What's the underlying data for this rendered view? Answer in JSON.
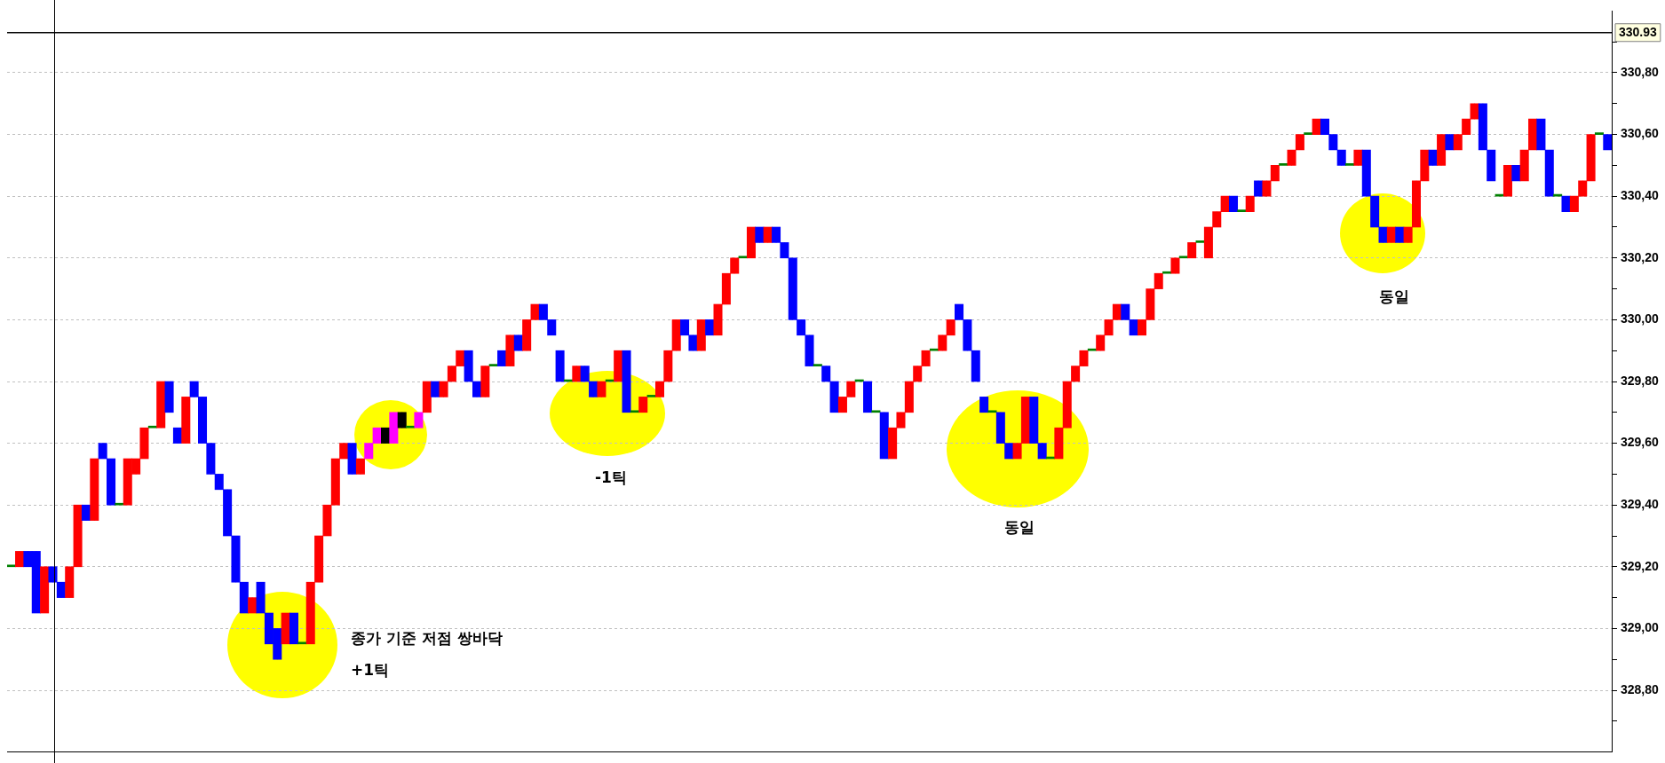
{
  "chart_data": {
    "type": "candlestick",
    "categories": [
      null,
      null,
      null,
      null,
      null,
      null,
      null,
      null,
      null,
      null,
      null,
      null,
      null,
      null,
      null,
      null,
      null,
      null,
      null,
      null,
      null,
      null,
      null,
      null,
      null,
      null,
      null,
      null,
      null,
      null,
      null,
      null,
      null,
      null,
      null,
      null,
      null,
      null,
      null,
      null,
      null,
      null,
      null,
      null,
      null,
      null,
      null,
      null,
      null,
      null,
      null,
      null,
      null,
      null,
      null,
      null,
      null,
      null,
      null,
      null,
      null,
      null,
      null,
      null,
      null,
      null,
      null,
      null,
      null,
      null,
      null,
      null,
      null,
      null,
      null,
      null,
      null,
      null,
      null,
      null,
      null,
      null,
      null,
      null,
      null,
      null,
      null,
      null,
      null,
      null,
      null,
      null,
      null,
      null,
      null,
      null,
      null,
      null,
      null,
      null,
      null,
      null,
      null,
      null,
      null,
      null,
      null,
      null,
      null,
      null,
      null,
      null,
      null,
      null,
      null,
      null,
      null,
      null,
      null,
      null,
      null,
      null,
      null,
      null,
      null,
      null,
      null,
      null,
      null,
      null,
      null,
      null,
      null,
      null,
      null,
      null,
      null,
      null,
      null,
      null,
      null,
      null,
      null,
      null,
      null,
      null,
      null,
      null,
      null,
      null,
      null,
      null,
      null,
      null,
      null,
      null,
      null,
      null,
      null,
      null,
      null,
      null,
      null,
      null,
      null,
      null,
      null,
      null,
      null,
      null,
      null,
      null,
      null,
      null,
      null,
      null,
      null,
      null,
      null,
      null,
      null,
      null,
      null,
      null,
      null,
      null,
      null,
      null,
      null,
      null,
      null,
      null,
      null
    ],
    "ohlc": [
      [
        329.2,
        329.2,
        329.2,
        329.2
      ],
      [
        329.2,
        329.25,
        329.2,
        329.25
      ],
      [
        329.25,
        329.25,
        329.2,
        329.2
      ],
      [
        329.25,
        329.25,
        329.05,
        329.05
      ],
      [
        329.05,
        329.2,
        329.05,
        329.2
      ],
      [
        329.2,
        329.2,
        329.15,
        329.15
      ],
      [
        329.15,
        329.15,
        329.1,
        329.1
      ],
      [
        329.1,
        329.2,
        329.1,
        329.2
      ],
      [
        329.2,
        329.4,
        329.2,
        329.4
      ],
      [
        329.4,
        329.4,
        329.35,
        329.35
      ],
      [
        329.35,
        329.55,
        329.35,
        329.55
      ],
      [
        329.6,
        329.6,
        329.55,
        329.55
      ],
      [
        329.55,
        329.55,
        329.4,
        329.4
      ],
      [
        329.4,
        329.4,
        329.4,
        329.4
      ],
      [
        329.4,
        329.55,
        329.4,
        329.55
      ],
      [
        329.5,
        329.55,
        329.5,
        329.55
      ],
      [
        329.55,
        329.65,
        329.55,
        329.65
      ],
      [
        329.65,
        329.65,
        329.65,
        329.65
      ],
      [
        329.65,
        329.8,
        329.65,
        329.8
      ],
      [
        329.8,
        329.8,
        329.7,
        329.7
      ],
      [
        329.65,
        329.65,
        329.6,
        329.6
      ],
      [
        329.6,
        329.75,
        329.6,
        329.75
      ],
      [
        329.8,
        329.8,
        329.75,
        329.75
      ],
      [
        329.75,
        329.75,
        329.6,
        329.6
      ],
      [
        329.6,
        329.6,
        329.5,
        329.5
      ],
      [
        329.5,
        329.5,
        329.45,
        329.45
      ],
      [
        329.45,
        329.45,
        329.3,
        329.3
      ],
      [
        329.3,
        329.3,
        329.15,
        329.15
      ],
      [
        329.15,
        329.15,
        329.05,
        329.05
      ],
      [
        329.05,
        329.1,
        329.05,
        329.1
      ],
      [
        329.15,
        329.15,
        329.05,
        329.05
      ],
      [
        329.05,
        329.05,
        328.95,
        328.95
      ],
      [
        329,
        329,
        328.9,
        328.9
      ],
      [
        328.95,
        329.05,
        328.95,
        329.05
      ],
      [
        329.05,
        329.05,
        328.95,
        328.95
      ],
      [
        328.95,
        328.95,
        328.95,
        328.95
      ],
      [
        328.95,
        329.15,
        328.95,
        329.15
      ],
      [
        329.15,
        329.3,
        329.15,
        329.3
      ],
      [
        329.3,
        329.4,
        329.3,
        329.4
      ],
      [
        329.4,
        329.55,
        329.4,
        329.55
      ],
      [
        329.55,
        329.6,
        329.55,
        329.6
      ],
      [
        329.6,
        329.6,
        329.5,
        329.5
      ],
      [
        329.5,
        329.55,
        329.5,
        329.55
      ],
      [
        329.55,
        329.6,
        329.55,
        329.6
      ],
      [
        329.6,
        329.65,
        329.6,
        329.65
      ],
      [
        329.65,
        329.65,
        329.6,
        329.6
      ],
      [
        329.6,
        329.7,
        329.6,
        329.7
      ],
      [
        329.7,
        329.7,
        329.65,
        329.65
      ],
      [
        329.65,
        329.65,
        329.65,
        329.65
      ],
      [
        329.65,
        329.7,
        329.65,
        329.7
      ],
      [
        329.7,
        329.8,
        329.7,
        329.8
      ],
      [
        329.8,
        329.8,
        329.75,
        329.75
      ],
      [
        329.75,
        329.8,
        329.75,
        329.8
      ],
      [
        329.8,
        329.85,
        329.8,
        329.85
      ],
      [
        329.85,
        329.9,
        329.85,
        329.9
      ],
      [
        329.9,
        329.9,
        329.8,
        329.8
      ],
      [
        329.8,
        329.8,
        329.75,
        329.75
      ],
      [
        329.75,
        329.85,
        329.75,
        329.85
      ],
      [
        329.85,
        329.85,
        329.85,
        329.85
      ],
      [
        329.9,
        329.9,
        329.85,
        329.85
      ],
      [
        329.85,
        329.95,
        329.85,
        329.95
      ],
      [
        329.95,
        329.95,
        329.9,
        329.9
      ],
      [
        329.9,
        330,
        329.9,
        330
      ],
      [
        330,
        330.05,
        330,
        330.05
      ],
      [
        330.05,
        330.05,
        330,
        330
      ],
      [
        330,
        330,
        329.95,
        329.95
      ],
      [
        329.9,
        329.9,
        329.8,
        329.8
      ],
      [
        329.8,
        329.8,
        329.8,
        329.8
      ],
      [
        329.8,
        329.85,
        329.8,
        329.85
      ],
      [
        329.85,
        329.85,
        329.8,
        329.8
      ],
      [
        329.8,
        329.8,
        329.75,
        329.75
      ],
      [
        329.75,
        329.8,
        329.75,
        329.8
      ],
      [
        329.8,
        329.8,
        329.8,
        329.8
      ],
      [
        329.8,
        329.9,
        329.8,
        329.9
      ],
      [
        329.9,
        329.9,
        329.7,
        329.7
      ],
      [
        329.7,
        329.7,
        329.7,
        329.7
      ],
      [
        329.7,
        329.75,
        329.7,
        329.75
      ],
      [
        329.75,
        329.75,
        329.75,
        329.75
      ],
      [
        329.75,
        329.8,
        329.75,
        329.8
      ],
      [
        329.8,
        329.9,
        329.8,
        329.9
      ],
      [
        329.9,
        330,
        329.9,
        330
      ],
      [
        330,
        330,
        329.95,
        329.95
      ],
      [
        329.95,
        329.95,
        329.9,
        329.9
      ],
      [
        329.9,
        330,
        329.9,
        330
      ],
      [
        330,
        330,
        329.95,
        329.95
      ],
      [
        329.95,
        330.05,
        329.95,
        330.05
      ],
      [
        330.05,
        330.15,
        330.05,
        330.15
      ],
      [
        330.15,
        330.2,
        330.15,
        330.2
      ],
      [
        330.2,
        330.2,
        330.2,
        330.2
      ],
      [
        330.2,
        330.3,
        330.2,
        330.3
      ],
      [
        330.3,
        330.3,
        330.25,
        330.25
      ],
      [
        330.25,
        330.3,
        330.25,
        330.3
      ],
      [
        330.3,
        330.3,
        330.25,
        330.25
      ],
      [
        330.25,
        330.25,
        330.2,
        330.2
      ],
      [
        330.2,
        330.2,
        330,
        330
      ],
      [
        330,
        330,
        329.95,
        329.95
      ],
      [
        329.95,
        329.95,
        329.85,
        329.85
      ],
      [
        329.85,
        329.85,
        329.85,
        329.85
      ],
      [
        329.85,
        329.85,
        329.8,
        329.8
      ],
      [
        329.8,
        329.8,
        329.7,
        329.7
      ],
      [
        329.7,
        329.75,
        329.7,
        329.75
      ],
      [
        329.75,
        329.8,
        329.75,
        329.8
      ],
      [
        329.8,
        329.8,
        329.8,
        329.8
      ],
      [
        329.8,
        329.8,
        329.7,
        329.7
      ],
      [
        329.7,
        329.7,
        329.7,
        329.7
      ],
      [
        329.7,
        329.7,
        329.55,
        329.55
      ],
      [
        329.55,
        329.65,
        329.55,
        329.65
      ],
      [
        329.65,
        329.7,
        329.65,
        329.7
      ],
      [
        329.7,
        329.8,
        329.7,
        329.8
      ],
      [
        329.8,
        329.85,
        329.8,
        329.85
      ],
      [
        329.85,
        329.9,
        329.85,
        329.9
      ],
      [
        329.9,
        329.9,
        329.9,
        329.9
      ],
      [
        329.9,
        329.95,
        329.9,
        329.95
      ],
      [
        329.95,
        330,
        329.95,
        330
      ],
      [
        330.05,
        330.05,
        330,
        330
      ],
      [
        330,
        330,
        329.9,
        329.9
      ],
      [
        329.9,
        329.9,
        329.8,
        329.8
      ],
      [
        329.75,
        329.75,
        329.7,
        329.7
      ],
      [
        329.7,
        329.7,
        329.7,
        329.7
      ],
      [
        329.7,
        329.7,
        329.6,
        329.6
      ],
      [
        329.6,
        329.6,
        329.55,
        329.55
      ],
      [
        329.55,
        329.6,
        329.55,
        329.6
      ],
      [
        329.6,
        329.75,
        329.6,
        329.75
      ],
      [
        329.75,
        329.75,
        329.6,
        329.6
      ],
      [
        329.6,
        329.6,
        329.55,
        329.55
      ],
      [
        329.55,
        329.55,
        329.55,
        329.55
      ],
      [
        329.55,
        329.65,
        329.55,
        329.65
      ],
      [
        329.65,
        329.8,
        329.65,
        329.8
      ],
      [
        329.8,
        329.85,
        329.8,
        329.85
      ],
      [
        329.85,
        329.9,
        329.85,
        329.9
      ],
      [
        329.9,
        329.9,
        329.9,
        329.9
      ],
      [
        329.9,
        329.95,
        329.9,
        329.95
      ],
      [
        329.95,
        330,
        329.95,
        330
      ],
      [
        330,
        330.05,
        330,
        330.05
      ],
      [
        330.05,
        330.05,
        330,
        330
      ],
      [
        330,
        330,
        329.95,
        329.95
      ],
      [
        329.95,
        330,
        329.95,
        330
      ],
      [
        330,
        330.1,
        330,
        330.1
      ],
      [
        330.1,
        330.15,
        330.1,
        330.15
      ],
      [
        330.15,
        330.15,
        330.15,
        330.15
      ],
      [
        330.15,
        330.2,
        330.15,
        330.2
      ],
      [
        330.2,
        330.2,
        330.2,
        330.2
      ],
      [
        330.2,
        330.25,
        330.2,
        330.25
      ],
      [
        330.25,
        330.25,
        330.25,
        330.25
      ],
      [
        330.2,
        330.3,
        330.2,
        330.3
      ],
      [
        330.3,
        330.35,
        330.3,
        330.35
      ],
      [
        330.35,
        330.4,
        330.35,
        330.4
      ],
      [
        330.4,
        330.4,
        330.35,
        330.35
      ],
      [
        330.35,
        330.35,
        330.35,
        330.35
      ],
      [
        330.35,
        330.4,
        330.35,
        330.4
      ],
      [
        330.45,
        330.45,
        330.4,
        330.4
      ],
      [
        330.4,
        330.45,
        330.4,
        330.45
      ],
      [
        330.45,
        330.5,
        330.45,
        330.5
      ],
      [
        330.5,
        330.5,
        330.5,
        330.5
      ],
      [
        330.5,
        330.55,
        330.5,
        330.55
      ],
      [
        330.55,
        330.6,
        330.55,
        330.6
      ],
      [
        330.6,
        330.6,
        330.6,
        330.6
      ],
      [
        330.6,
        330.65,
        330.6,
        330.65
      ],
      [
        330.65,
        330.65,
        330.6,
        330.6
      ],
      [
        330.6,
        330.6,
        330.55,
        330.55
      ],
      [
        330.55,
        330.55,
        330.5,
        330.5
      ],
      [
        330.5,
        330.5,
        330.5,
        330.5
      ],
      [
        330.5,
        330.55,
        330.5,
        330.55
      ],
      [
        330.55,
        330.55,
        330.4,
        330.4
      ],
      [
        330.4,
        330.4,
        330.3,
        330.3
      ],
      [
        330.3,
        330.3,
        330.25,
        330.25
      ],
      [
        330.25,
        330.3,
        330.25,
        330.3
      ],
      [
        330.3,
        330.3,
        330.25,
        330.25
      ],
      [
        330.25,
        330.3,
        330.25,
        330.3
      ],
      [
        330.3,
        330.45,
        330.3,
        330.45
      ],
      [
        330.45,
        330.55,
        330.45,
        330.55
      ],
      [
        330.55,
        330.55,
        330.5,
        330.5
      ],
      [
        330.5,
        330.6,
        330.5,
        330.6
      ],
      [
        330.6,
        330.6,
        330.55,
        330.55
      ],
      [
        330.55,
        330.6,
        330.55,
        330.6
      ],
      [
        330.6,
        330.65,
        330.6,
        330.65
      ],
      [
        330.65,
        330.7,
        330.65,
        330.7
      ],
      [
        330.7,
        330.7,
        330.55,
        330.55
      ],
      [
        330.55,
        330.55,
        330.45,
        330.45
      ],
      [
        330.4,
        330.4,
        330.4,
        330.4
      ],
      [
        330.4,
        330.5,
        330.4,
        330.5
      ],
      [
        330.5,
        330.5,
        330.45,
        330.45
      ],
      [
        330.45,
        330.55,
        330.45,
        330.55
      ],
      [
        330.55,
        330.65,
        330.55,
        330.65
      ],
      [
        330.65,
        330.65,
        330.55,
        330.55
      ],
      [
        330.55,
        330.55,
        330.4,
        330.4
      ],
      [
        330.4,
        330.4,
        330.4,
        330.4
      ],
      [
        330.4,
        330.4,
        330.35,
        330.35
      ],
      [
        330.35,
        330.4,
        330.35,
        330.4
      ],
      [
        330.4,
        330.45,
        330.4,
        330.45
      ],
      [
        330.45,
        330.6,
        330.45,
        330.6
      ],
      [
        330.6,
        330.6,
        330.6,
        330.6
      ],
      [
        330.6,
        330.6,
        330.55,
        330.55
      ]
    ],
    "colors": [
      "#008000",
      "#ff0000",
      "#0000ff",
      "#0000ff",
      "#ff0000",
      "#0000ff",
      "#0000ff",
      "#ff0000",
      "#ff0000",
      "#0000ff",
      "#ff0000",
      "#0000ff",
      "#0000ff",
      "#008000",
      "#ff0000",
      "#ff0000",
      "#ff0000",
      "#008000",
      "#ff0000",
      "#0000ff",
      "#0000ff",
      "#ff0000",
      "#0000ff",
      "#0000ff",
      "#0000ff",
      "#0000ff",
      "#0000ff",
      "#0000ff",
      "#0000ff",
      "#ff0000",
      "#0000ff",
      "#0000ff",
      "#0000ff",
      "#ff0000",
      "#0000ff",
      "#008000",
      "#ff0000",
      "#ff0000",
      "#ff0000",
      "#ff0000",
      "#ff0000",
      "#0000ff",
      "#ff0000",
      "#ff00ff",
      "#ff00ff",
      "#000000",
      "#ff00ff",
      "#000000",
      "#008000",
      "#ff00ff",
      "#ff0000",
      "#0000ff",
      "#ff0000",
      "#ff0000",
      "#ff0000",
      "#0000ff",
      "#0000ff",
      "#ff0000",
      "#008000",
      "#0000ff",
      "#ff0000",
      "#0000ff",
      "#ff0000",
      "#ff0000",
      "#0000ff",
      "#0000ff",
      "#0000ff",
      "#008000",
      "#ff0000",
      "#0000ff",
      "#0000ff",
      "#ff0000",
      "#008000",
      "#ff0000",
      "#0000ff",
      "#008000",
      "#ff0000",
      "#008000",
      "#ff0000",
      "#ff0000",
      "#ff0000",
      "#0000ff",
      "#0000ff",
      "#ff0000",
      "#0000ff",
      "#ff0000",
      "#ff0000",
      "#ff0000",
      "#008000",
      "#ff0000",
      "#0000ff",
      "#ff0000",
      "#0000ff",
      "#0000ff",
      "#0000ff",
      "#0000ff",
      "#0000ff",
      "#008000",
      "#0000ff",
      "#0000ff",
      "#ff0000",
      "#ff0000",
      "#008000",
      "#0000ff",
      "#008000",
      "#0000ff",
      "#ff0000",
      "#ff0000",
      "#ff0000",
      "#ff0000",
      "#ff0000",
      "#008000",
      "#ff0000",
      "#ff0000",
      "#0000ff",
      "#0000ff",
      "#0000ff",
      "#0000ff",
      "#008000",
      "#0000ff",
      "#0000ff",
      "#ff0000",
      "#ff0000",
      "#0000ff",
      "#0000ff",
      "#008000",
      "#ff0000",
      "#ff0000",
      "#ff0000",
      "#ff0000",
      "#008000",
      "#ff0000",
      "#ff0000",
      "#ff0000",
      "#0000ff",
      "#0000ff",
      "#ff0000",
      "#ff0000",
      "#ff0000",
      "#008000",
      "#ff0000",
      "#008000",
      "#ff0000",
      "#008000",
      "#ff0000",
      "#ff0000",
      "#ff0000",
      "#0000ff",
      "#008000",
      "#ff0000",
      "#0000ff",
      "#ff0000",
      "#ff0000",
      "#008000",
      "#ff0000",
      "#ff0000",
      "#008000",
      "#ff0000",
      "#0000ff",
      "#0000ff",
      "#0000ff",
      "#008000",
      "#ff0000",
      "#0000ff",
      "#0000ff",
      "#0000ff",
      "#ff0000",
      "#0000ff",
      "#ff0000",
      "#ff0000",
      "#ff0000",
      "#0000ff",
      "#ff0000",
      "#0000ff",
      "#ff0000",
      "#ff0000",
      "#ff0000",
      "#0000ff",
      "#0000ff",
      "#008000",
      "#ff0000",
      "#0000ff",
      "#ff0000",
      "#ff0000",
      "#0000ff",
      "#0000ff",
      "#008000",
      "#0000ff",
      "#ff0000",
      "#ff0000",
      "#ff0000",
      "#008000",
      "#0000ff"
    ],
    "ylim": [
      328.6,
      331.0
    ],
    "yticks": [
      {
        "value": 328.7,
        "label": null
      },
      {
        "value": 328.8,
        "label": "328,80"
      },
      {
        "value": 328.9,
        "label": null
      },
      {
        "value": 329.0,
        "label": "329,00"
      },
      {
        "value": 329.1,
        "label": null
      },
      {
        "value": 329.2,
        "label": "329,20"
      },
      {
        "value": 329.3,
        "label": null
      },
      {
        "value": 329.4,
        "label": "329,40"
      },
      {
        "value": 329.5,
        "label": null
      },
      {
        "value": 329.6,
        "label": "329,60"
      },
      {
        "value": 329.7,
        "label": null
      },
      {
        "value": 329.8,
        "label": "329,80"
      },
      {
        "value": 329.9,
        "label": null
      },
      {
        "value": 330.0,
        "label": "330,00"
      },
      {
        "value": 330.1,
        "label": null
      },
      {
        "value": 330.2,
        "label": "330,20"
      },
      {
        "value": 330.3,
        "label": null
      },
      {
        "value": 330.4,
        "label": "330,40"
      },
      {
        "value": 330.5,
        "label": null
      },
      {
        "value": 330.6,
        "label": "330,60"
      },
      {
        "value": 330.7,
        "label": null
      },
      {
        "value": 330.8,
        "label": "330,80"
      },
      {
        "value": 330.9,
        "label": null
      }
    ],
    "ref_lines": [
      {
        "axis": "y",
        "value": 330.93,
        "label": "330.93",
        "color": "#000000"
      }
    ],
    "annotations": [
      "종가 기준 저점 쌍바닥",
      "+1틱",
      "-1틱",
      "동일",
      "동일"
    ],
    "grid": "y",
    "tick_labels": "y",
    "legend": false
  }
}
